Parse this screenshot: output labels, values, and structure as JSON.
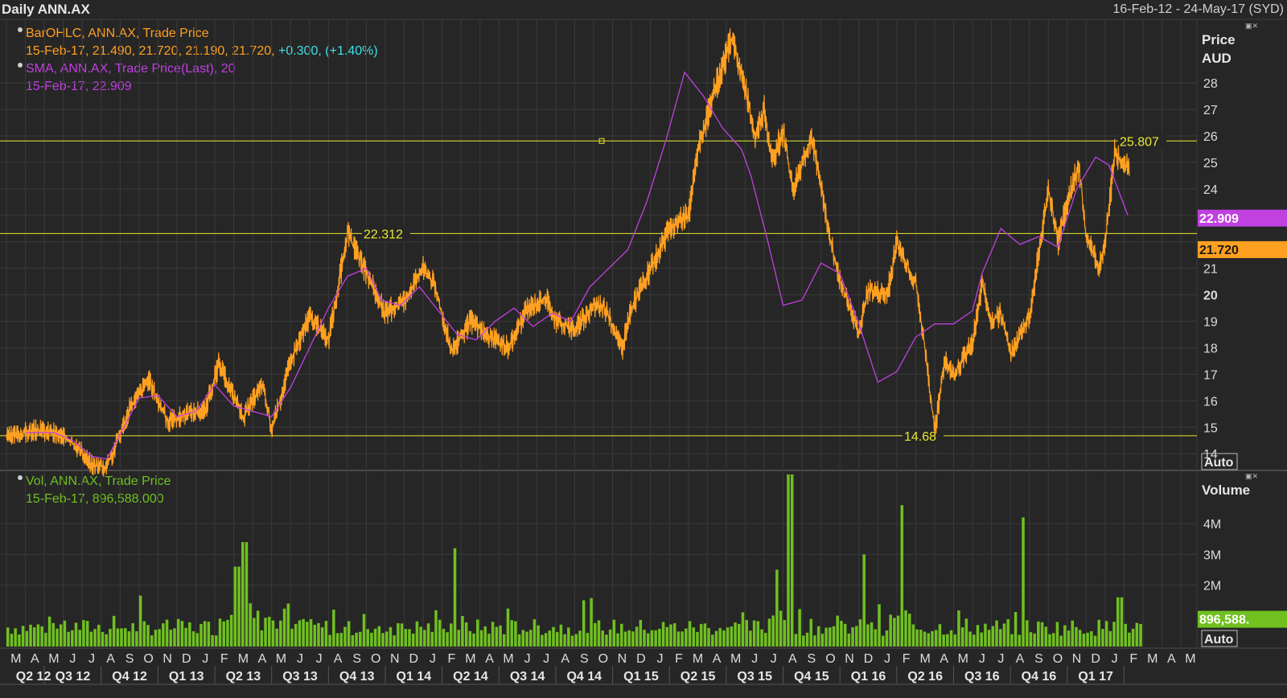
{
  "header": {
    "title": "Daily ANN.AX",
    "date_range": "16-Feb-12 - 24-May-17 (SYD)"
  },
  "legends": {
    "ohlc_name": "BarOHLC, ANN.AX, Trade Price",
    "ohlc_values_main": "15-Feb-17, 21.490, 21.720, 21.190, 21.720,",
    "ohlc_change": "+0.300, (+1.40%)",
    "sma_name": "SMA, ANN.AX, Trade Price(Last),  20",
    "sma_values": "15-Feb-17, 22.909",
    "vol_name": "Vol, ANN.AX, Trade Price",
    "vol_values": "15-Feb-17, 896,588.000"
  },
  "colors": {
    "price": "#ffa020",
    "sma": "#c040e0",
    "volume": "#70c020",
    "hline": "#e8e830",
    "change": "#40e0e8",
    "grid": "#3a3a3a",
    "bg": "#262626"
  },
  "chart_data": {
    "type": "line",
    "price_axis": {
      "label_line1": "Price",
      "label_line2": "AUD",
      "ylim": [
        13.4,
        30.4
      ],
      "ticks": [
        14,
        15,
        16,
        17,
        18,
        19,
        20,
        21,
        22,
        23,
        24,
        25,
        26,
        27,
        28
      ],
      "tick_labels": [
        "14",
        "15",
        "16",
        "17",
        "18",
        "19",
        "20",
        "21",
        "",
        "",
        "24",
        "25",
        "26",
        "27",
        "28"
      ],
      "auto_label": "Auto"
    },
    "volume_axis": {
      "label": "Volume",
      "ylim": [
        0,
        5.6
      ],
      "ticks": [
        2,
        3,
        4
      ],
      "tick_labels": [
        "2M",
        "3M",
        "4M"
      ],
      "auto_label": "Auto"
    },
    "months": [
      "M",
      "A",
      "M",
      "J",
      "J",
      "A",
      "S",
      "O",
      "N",
      "D",
      "J",
      "F",
      "M",
      "A",
      "M",
      "J",
      "J",
      "A",
      "S",
      "O",
      "N",
      "D",
      "J",
      "F",
      "M",
      "A",
      "M",
      "J",
      "J",
      "A",
      "S",
      "O",
      "N",
      "D",
      "J",
      "F",
      "M",
      "A",
      "M",
      "J",
      "J",
      "A",
      "S",
      "O",
      "N",
      "D",
      "J",
      "F",
      "M",
      "A",
      "M",
      "J",
      "J",
      "A",
      "S",
      "O",
      "N",
      "D",
      "J",
      "F",
      "M",
      "A",
      "M"
    ],
    "quarters": [
      "Q2 12",
      "Q3 12",
      "Q4 12",
      "Q1 13",
      "Q2 13",
      "Q3 13",
      "Q4 13",
      "Q1 14",
      "Q2 14",
      "Q3 14",
      "Q4 14",
      "Q1 15",
      "Q2 15",
      "Q3 15",
      "Q4 15",
      "Q1 16",
      "Q2 16",
      "Q3 16",
      "Q4 16",
      "Q1 17"
    ],
    "horizontal_lines": [
      {
        "value": 25.807,
        "label": "25.807"
      },
      {
        "value": 22.312,
        "label": "22.312"
      },
      {
        "value": 14.68,
        "label": "14.68"
      }
    ],
    "last_price_label": "21.720",
    "last_price_value": 21.72,
    "last_sma_label": "22.909",
    "last_sma_value": 22.909,
    "last_volume_label": "896,588.",
    "last_volume_value": 0.9,
    "price_series": {
      "name": "BarOHLC, ANN.AX, Trade Price",
      "x_month_index": [
        0,
        1.5,
        2.5,
        3.5,
        4.5,
        5.2,
        5.6,
        6.5,
        7.5,
        8.5,
        9.5,
        10.5,
        11.2,
        11.8,
        12.5,
        13.5,
        14,
        15,
        16,
        17,
        18,
        19,
        20,
        21,
        22,
        22.5,
        23.5,
        24.5,
        25.5,
        26.5,
        27.5,
        28.5,
        29,
        30,
        31,
        31.5,
        32.5,
        33,
        34,
        35,
        36,
        36.5,
        37.5,
        38.3,
        39,
        39.5,
        40,
        40.4,
        41,
        41.5,
        42.5,
        43.5,
        44,
        45,
        45.5,
        46.5,
        47,
        48,
        48.5,
        49,
        49.5,
        50,
        51,
        51.5,
        52,
        52.5,
        53,
        53.5,
        54,
        55,
        55.5,
        56,
        56.6,
        57,
        57.7,
        58,
        58.5,
        59
      ],
      "values": [
        14.6,
        14.9,
        14.8,
        14.4,
        13.6,
        13.5,
        14.0,
        15.7,
        16.8,
        15.2,
        15.5,
        15.7,
        17.4,
        16.5,
        15.4,
        16.6,
        14.9,
        17.5,
        19.2,
        18.3,
        22.3,
        20.8,
        19.3,
        19.8,
        21.0,
        20.5,
        17.9,
        19.0,
        18.4,
        18.0,
        19.5,
        19.9,
        19.0,
        18.7,
        19.6,
        19.6,
        18.0,
        19.5,
        21.0,
        22.5,
        23.0,
        25.5,
        28.0,
        29.7,
        27.8,
        26.0,
        27.0,
        25.0,
        26.2,
        24.0,
        26.0,
        22.0,
        20.5,
        18.6,
        20.2,
        20.0,
        22.0,
        20.4,
        17.9,
        14.8,
        17.5,
        17.0,
        18.2,
        20.4,
        19.0,
        19.3,
        17.7,
        18.5,
        19.2,
        24.0,
        22.0,
        23.5,
        24.9,
        22.2,
        21.0,
        22.0,
        25.4,
        24.8
      ],
      "last_x": 59.25
    },
    "sma_series": {
      "name": "SMA, ANN.AX, Trade Price(Last),  20",
      "x_month_index": [
        1,
        2.5,
        3.5,
        4.5,
        5.3,
        6.2,
        7,
        8,
        9,
        10,
        11,
        12,
        13,
        14,
        15,
        16,
        17,
        18,
        19,
        19.8,
        20.8,
        21.8,
        22.8,
        23.8,
        24.8,
        25.8,
        26.8,
        27.8,
        28.8,
        29.8,
        30.8,
        31.8,
        32.8,
        33.8,
        34.8,
        35.8,
        36.8,
        37.8,
        38.8,
        39.3,
        40.2,
        41,
        42,
        43,
        44,
        45,
        46,
        47,
        48,
        49,
        50,
        51,
        51.5,
        52.5,
        53.5,
        54.5,
        55.5,
        56.5,
        57.5,
        58.2,
        59.25
      ],
      "values": [
        14.8,
        14.8,
        14.5,
        13.9,
        13.8,
        15.0,
        16.1,
        16.2,
        15.4,
        15.6,
        16.6,
        15.8,
        15.6,
        15.4,
        16.5,
        18.0,
        19.5,
        20.7,
        21.0,
        19.8,
        19.6,
        20.3,
        19.4,
        18.5,
        18.3,
        19.0,
        19.5,
        18.8,
        19.3,
        19.0,
        20.3,
        21.0,
        21.7,
        23.5,
        25.8,
        28.4,
        27.5,
        26.3,
        25.5,
        24.5,
        22.0,
        19.6,
        19.8,
        21.2,
        20.8,
        18.9,
        16.7,
        17.1,
        18.4,
        18.9,
        18.9,
        19.4,
        20.8,
        22.5,
        21.9,
        22.2,
        21.8,
        24.0,
        25.2,
        24.9,
        22.9
      ]
    },
    "volume_series": {
      "name": "Vol, ANN.AX, Trade Price",
      "unit": "millions",
      "bars_per_month": 5,
      "months": 60,
      "peaks": [
        {
          "month_index": 12.5,
          "value": 3.4
        },
        {
          "month_index": 12.1,
          "value": 2.6
        },
        {
          "month_index": 23.6,
          "value": 3.2
        },
        {
          "month_index": 41.3,
          "value": 5.6
        },
        {
          "month_index": 40.6,
          "value": 2.5
        },
        {
          "month_index": 45.2,
          "value": 3.0
        },
        {
          "month_index": 47.2,
          "value": 4.6
        },
        {
          "month_index": 53.6,
          "value": 4.2
        },
        {
          "month_index": 58.7,
          "value": 1.6
        }
      ],
      "last_value": 0.9
    }
  }
}
